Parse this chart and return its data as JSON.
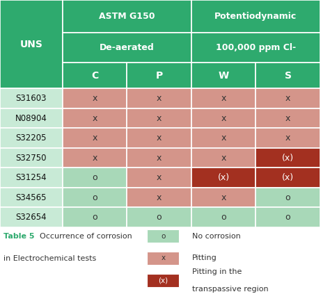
{
  "title_left": "ASTM G150",
  "title_right": "Potentiodynamic",
  "subtitle_left": "De-aerated",
  "subtitle_right": "100,000 ppm Cl-",
  "col_headers": [
    "C",
    "P",
    "W",
    "S"
  ],
  "row_labels": [
    "S31603",
    "N08904",
    "S32205",
    "S32750",
    "S31254",
    "S34565",
    "S32654"
  ],
  "uns_label": "UNS",
  "table_data": [
    [
      "x",
      "x",
      "x",
      "x"
    ],
    [
      "x",
      "x",
      "x",
      "x"
    ],
    [
      "x",
      "x",
      "x",
      "x"
    ],
    [
      "x",
      "x",
      "x",
      "(x)"
    ],
    [
      "o",
      "x",
      "(x)",
      "(x)"
    ],
    [
      "o",
      "x",
      "x",
      "o"
    ],
    [
      "o",
      "o",
      "o",
      "o"
    ]
  ],
  "header_bg": "#2eaa6e",
  "header_text": "#ffffff",
  "green_bg": "#a8d8b8",
  "pink_bg": "#d4958a",
  "dark_red_bg": "#a33020",
  "uns_row_bg": "#c8ead6",
  "legend_items": [
    {
      "symbol": "o",
      "color": "#a8d8b8",
      "text_color": "#333333",
      "label": "No corrosion"
    },
    {
      "symbol": "x",
      "color": "#d4958a",
      "text_color": "#333333",
      "label": "Pitting"
    },
    {
      "symbol": "(x)",
      "color": "#a33020",
      "text_color": "#ffffff",
      "label": "Pitting in the\ntranspassive region"
    }
  ],
  "caption_bold": "Table 5",
  "caption_rest": " Occurrence of corrosion\nin Electrochemical tests",
  "fig_width": 4.74,
  "fig_height": 4.33,
  "dpi": 100
}
